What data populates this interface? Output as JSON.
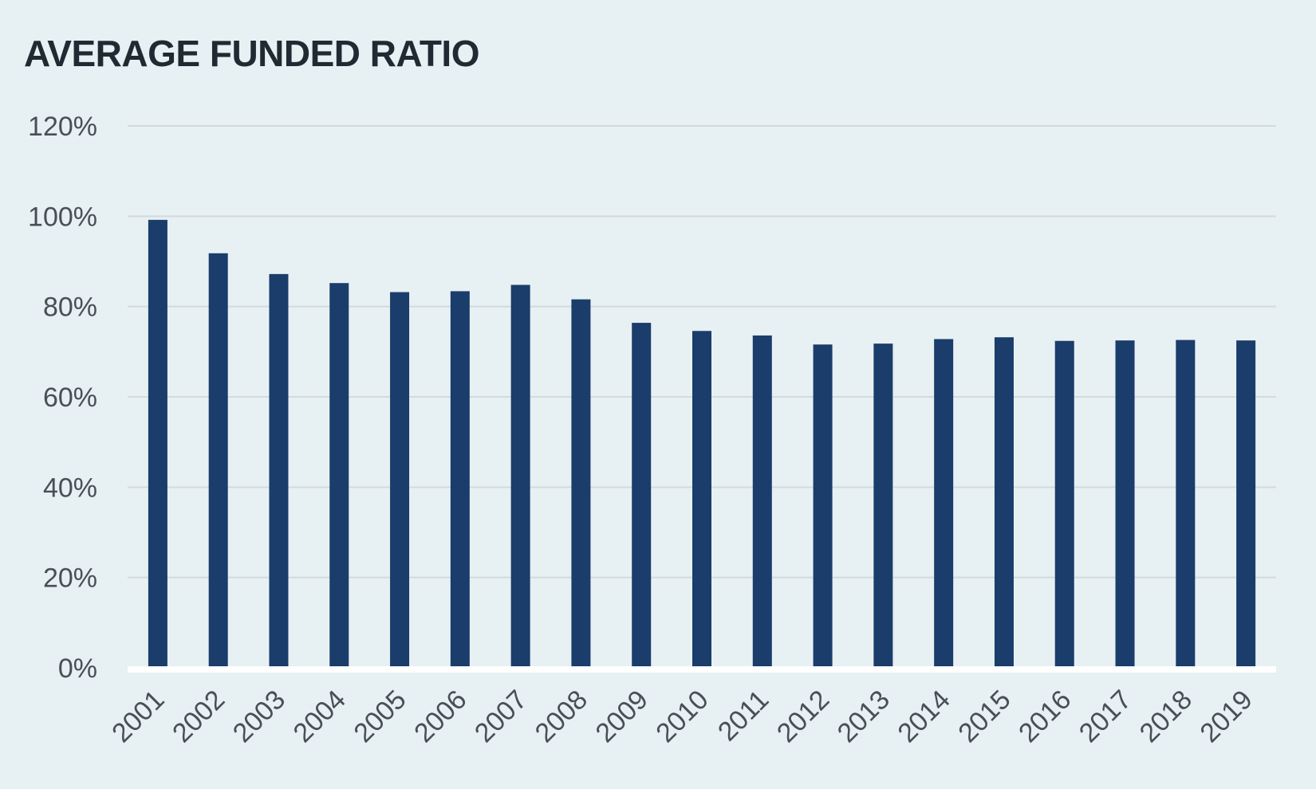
{
  "chart_data": {
    "type": "bar",
    "title": "AVERAGE FUNDED RATIO",
    "xlabel": "",
    "ylabel": "",
    "categories": [
      "2001",
      "2002",
      "2003",
      "2004",
      "2005",
      "2006",
      "2007",
      "2008",
      "2009",
      "2010",
      "2011",
      "2012",
      "2013",
      "2014",
      "2015",
      "2016",
      "2017",
      "2018",
      "2019"
    ],
    "values": [
      99.2,
      91.8,
      87.2,
      85.2,
      83.2,
      83.4,
      84.8,
      81.6,
      76.4,
      74.6,
      73.6,
      71.6,
      71.8,
      72.8,
      73.2,
      72.4,
      72.5,
      72.6,
      72.5
    ],
    "ylim": [
      0,
      120
    ],
    "yticks": [
      "0%",
      "20%",
      "40%",
      "60%",
      "80%",
      "100%",
      "120%"
    ],
    "grid": true,
    "legend": "none",
    "bar_color": "#1a3d6b",
    "grid_color": "#d5d9de",
    "baseline_color": "#ffffff"
  }
}
